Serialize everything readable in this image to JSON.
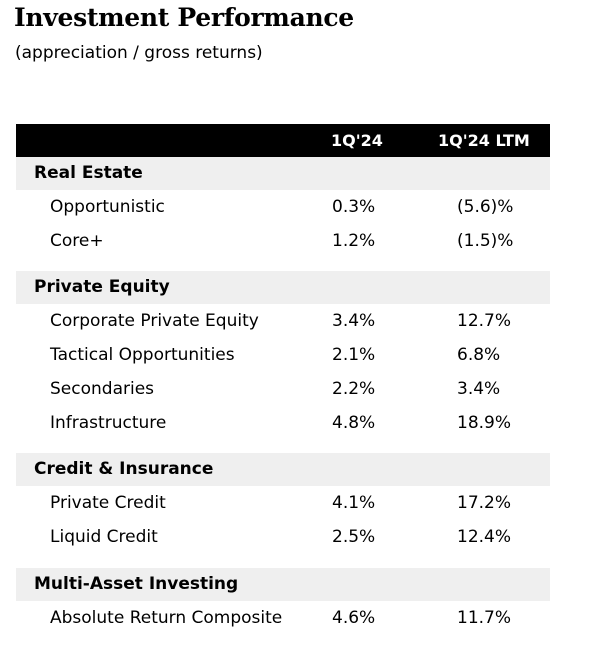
{
  "title": "Investment Performance",
  "subtitle": "(appreciation  /  gross returns)",
  "columns": [
    "1Q'24",
    "1Q'24 LTM"
  ],
  "sections": [
    {
      "name": "Real Estate",
      "rows": [
        {
          "label": "Opportunistic",
          "q": "0.3%",
          "ltm": "(5.6)%"
        },
        {
          "label": "Core+",
          "q": "1.2%",
          "ltm": "(1.5)%"
        }
      ]
    },
    {
      "name": "Private Equity",
      "rows": [
        {
          "label": "Corporate Private Equity",
          "q": "3.4%",
          "ltm": "12.7%"
        },
        {
          "label": "Tactical Opportunities",
          "q": "2.1%",
          "ltm": "6.8%"
        },
        {
          "label": "Secondaries",
          "q": "2.2%",
          "ltm": "3.4%"
        },
        {
          "label": "Infrastructure",
          "q": "4.8%",
          "ltm": "18.9%"
        }
      ]
    },
    {
      "name": "Credit & Insurance",
      "rows": [
        {
          "label": "Private Credit",
          "q": "4.1%",
          "ltm": "17.2%"
        },
        {
          "label": "Liquid Credit",
          "q": "2.5%",
          "ltm": "12.4%"
        }
      ]
    },
    {
      "name": "Multi-Asset Investing",
      "rows": [
        {
          "label": "Absolute Return Composite",
          "q": "4.6%",
          "ltm": "11.7%"
        }
      ]
    }
  ]
}
